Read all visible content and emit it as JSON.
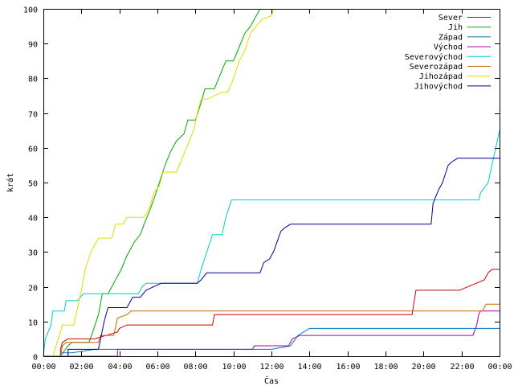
{
  "chart_data": {
    "type": "line",
    "xlabel": "Čas",
    "ylabel": "krát",
    "xlim": [
      0,
      24
    ],
    "ylim": [
      0,
      100
    ],
    "x_ticks": [
      {
        "value": 0,
        "label": "00:00"
      },
      {
        "value": 2,
        "label": "02:00"
      },
      {
        "value": 4,
        "label": "04:00"
      },
      {
        "value": 6,
        "label": "06:00"
      },
      {
        "value": 8,
        "label": "08:00"
      },
      {
        "value": 10,
        "label": "10:00"
      },
      {
        "value": 12,
        "label": "12:00"
      },
      {
        "value": 14,
        "label": "14:00"
      },
      {
        "value": 16,
        "label": "16:00"
      },
      {
        "value": 18,
        "label": "18:00"
      },
      {
        "value": 20,
        "label": "20:00"
      },
      {
        "value": 22,
        "label": "22:00"
      },
      {
        "value": 24,
        "label": "00:00"
      }
    ],
    "y_ticks": [
      0,
      10,
      20,
      30,
      40,
      50,
      60,
      70,
      80,
      90,
      100
    ],
    "legend_position": "top-right",
    "grid": false,
    "series": [
      {
        "name": "Sever",
        "color": "#cc0000",
        "points": [
          [
            0.9,
            0
          ],
          [
            0.9,
            2
          ],
          [
            1.0,
            4
          ],
          [
            1.3,
            5
          ],
          [
            2.7,
            5
          ],
          [
            3.9,
            7
          ],
          [
            4.0,
            8
          ],
          [
            4.4,
            9
          ],
          [
            8.9,
            9
          ],
          [
            9.0,
            12
          ],
          [
            19.4,
            12
          ],
          [
            19.6,
            19
          ],
          [
            21.9,
            19
          ],
          [
            23.2,
            22
          ],
          [
            23.4,
            24
          ],
          [
            23.6,
            25
          ],
          [
            24,
            25
          ]
        ]
      },
      {
        "name": "Jih",
        "color": "#00aa00",
        "points": [
          [
            0.9,
            0
          ],
          [
            1.3,
            3
          ],
          [
            1.5,
            4
          ],
          [
            2.4,
            4
          ],
          [
            2.6,
            7
          ],
          [
            2.9,
            12
          ],
          [
            3.1,
            18
          ],
          [
            3.4,
            18
          ],
          [
            3.8,
            22
          ],
          [
            4.1,
            25
          ],
          [
            4.4,
            29
          ],
          [
            4.8,
            33
          ],
          [
            5.1,
            35
          ],
          [
            5.3,
            38
          ],
          [
            5.6,
            42
          ],
          [
            5.8,
            45
          ],
          [
            6.1,
            50
          ],
          [
            6.4,
            55
          ],
          [
            6.7,
            59
          ],
          [
            7.0,
            62
          ],
          [
            7.4,
            64
          ],
          [
            7.6,
            68
          ],
          [
            8.0,
            68
          ],
          [
            8.3,
            73
          ],
          [
            8.5,
            77
          ],
          [
            9.0,
            77
          ],
          [
            9.3,
            81
          ],
          [
            9.6,
            85
          ],
          [
            10.0,
            85
          ],
          [
            10.3,
            89
          ],
          [
            10.6,
            93
          ],
          [
            10.9,
            95
          ],
          [
            11.2,
            98
          ],
          [
            11.4,
            100
          ]
        ]
      },
      {
        "name": "Západ",
        "color": "#0077bb",
        "points": [
          [
            0.9,
            0
          ],
          [
            0.9,
            1
          ],
          [
            1.2,
            1
          ],
          [
            1.5,
            1
          ],
          [
            2.7,
            2
          ],
          [
            12.0,
            2
          ],
          [
            13.0,
            3
          ],
          [
            13.4,
            6
          ],
          [
            14.0,
            8
          ],
          [
            14.5,
            8
          ],
          [
            24,
            8
          ]
        ]
      },
      {
        "name": "Východ",
        "color": "#aa00aa",
        "points": [
          [
            0,
            0
          ],
          [
            3.9,
            0
          ],
          [
            3.9,
            2
          ],
          [
            11.0,
            2
          ],
          [
            11.1,
            3
          ],
          [
            12.9,
            3
          ],
          [
            13.1,
            5
          ],
          [
            13.5,
            6
          ],
          [
            22.6,
            6
          ],
          [
            22.8,
            9
          ],
          [
            22.9,
            12
          ],
          [
            23.0,
            13
          ],
          [
            24,
            13
          ]
        ]
      },
      {
        "name": "Severovýchod",
        "color": "#00cccc",
        "points": [
          [
            0,
            0
          ],
          [
            0.1,
            5
          ],
          [
            0.4,
            9
          ],
          [
            0.5,
            13
          ],
          [
            1.1,
            13
          ],
          [
            1.2,
            16
          ],
          [
            1.8,
            16
          ],
          [
            2.1,
            18
          ],
          [
            5.0,
            18
          ],
          [
            5.2,
            20
          ],
          [
            5.4,
            21
          ],
          [
            8.1,
            21
          ],
          [
            8.3,
            25
          ],
          [
            8.6,
            30
          ],
          [
            8.9,
            35
          ],
          [
            9.4,
            35
          ],
          [
            9.6,
            40
          ],
          [
            9.9,
            45
          ],
          [
            22.9,
            45
          ],
          [
            23.0,
            47
          ],
          [
            23.4,
            50
          ],
          [
            23.8,
            60
          ],
          [
            24,
            65
          ]
        ]
      },
      {
        "name": "Severozápad",
        "color": "#cc6600",
        "points": [
          [
            0.9,
            0
          ],
          [
            1.0,
            3
          ],
          [
            1.2,
            4
          ],
          [
            2.9,
            4
          ],
          [
            3.0,
            6
          ],
          [
            3.7,
            6
          ],
          [
            3.9,
            11
          ],
          [
            4.4,
            12
          ],
          [
            4.6,
            13
          ],
          [
            23.1,
            13
          ],
          [
            23.3,
            15
          ],
          [
            24,
            15
          ]
        ]
      },
      {
        "name": "Jihozápad",
        "color": "#dddd00",
        "points": [
          [
            0.5,
            0
          ],
          [
            0.9,
            7
          ],
          [
            1.0,
            9
          ],
          [
            1.6,
            9
          ],
          [
            1.8,
            14
          ],
          [
            2.0,
            19
          ],
          [
            2.2,
            25
          ],
          [
            2.5,
            30
          ],
          [
            2.7,
            32
          ],
          [
            2.9,
            34
          ],
          [
            3.6,
            34
          ],
          [
            3.8,
            38
          ],
          [
            4.2,
            38
          ],
          [
            4.4,
            40
          ],
          [
            5.3,
            40
          ],
          [
            5.6,
            43
          ],
          [
            5.8,
            47
          ],
          [
            6.1,
            49
          ],
          [
            6.3,
            53
          ],
          [
            7.0,
            53
          ],
          [
            7.3,
            57
          ],
          [
            7.6,
            61
          ],
          [
            7.9,
            65
          ],
          [
            8.1,
            70
          ],
          [
            8.3,
            74
          ],
          [
            8.6,
            74
          ],
          [
            9.4,
            76
          ],
          [
            9.7,
            76
          ],
          [
            10.0,
            80
          ],
          [
            10.3,
            85
          ],
          [
            10.6,
            88
          ],
          [
            10.9,
            93
          ],
          [
            11.2,
            95
          ],
          [
            11.5,
            97
          ],
          [
            12.0,
            98
          ],
          [
            12.1,
            100
          ]
        ]
      },
      {
        "name": "Jihovýchod",
        "color": "#000099",
        "points": [
          [
            1.3,
            0
          ],
          [
            1.3,
            2
          ],
          [
            2.9,
            2
          ],
          [
            3.2,
            10
          ],
          [
            3.4,
            14
          ],
          [
            4.4,
            14
          ],
          [
            4.7,
            17
          ],
          [
            5.1,
            17
          ],
          [
            5.4,
            19
          ],
          [
            5.8,
            20
          ],
          [
            6.2,
            21
          ],
          [
            8.1,
            21
          ],
          [
            8.3,
            22
          ],
          [
            8.6,
            24
          ],
          [
            11.4,
            24
          ],
          [
            11.6,
            27
          ],
          [
            11.9,
            28
          ],
          [
            12.1,
            30
          ],
          [
            12.3,
            33
          ],
          [
            12.5,
            36
          ],
          [
            12.7,
            37
          ],
          [
            13.0,
            38
          ],
          [
            20.4,
            38
          ],
          [
            20.5,
            44
          ],
          [
            20.8,
            48
          ],
          [
            21.0,
            50
          ],
          [
            21.3,
            55
          ],
          [
            21.5,
            56
          ],
          [
            21.8,
            57
          ],
          [
            24,
            57
          ]
        ]
      }
    ]
  }
}
